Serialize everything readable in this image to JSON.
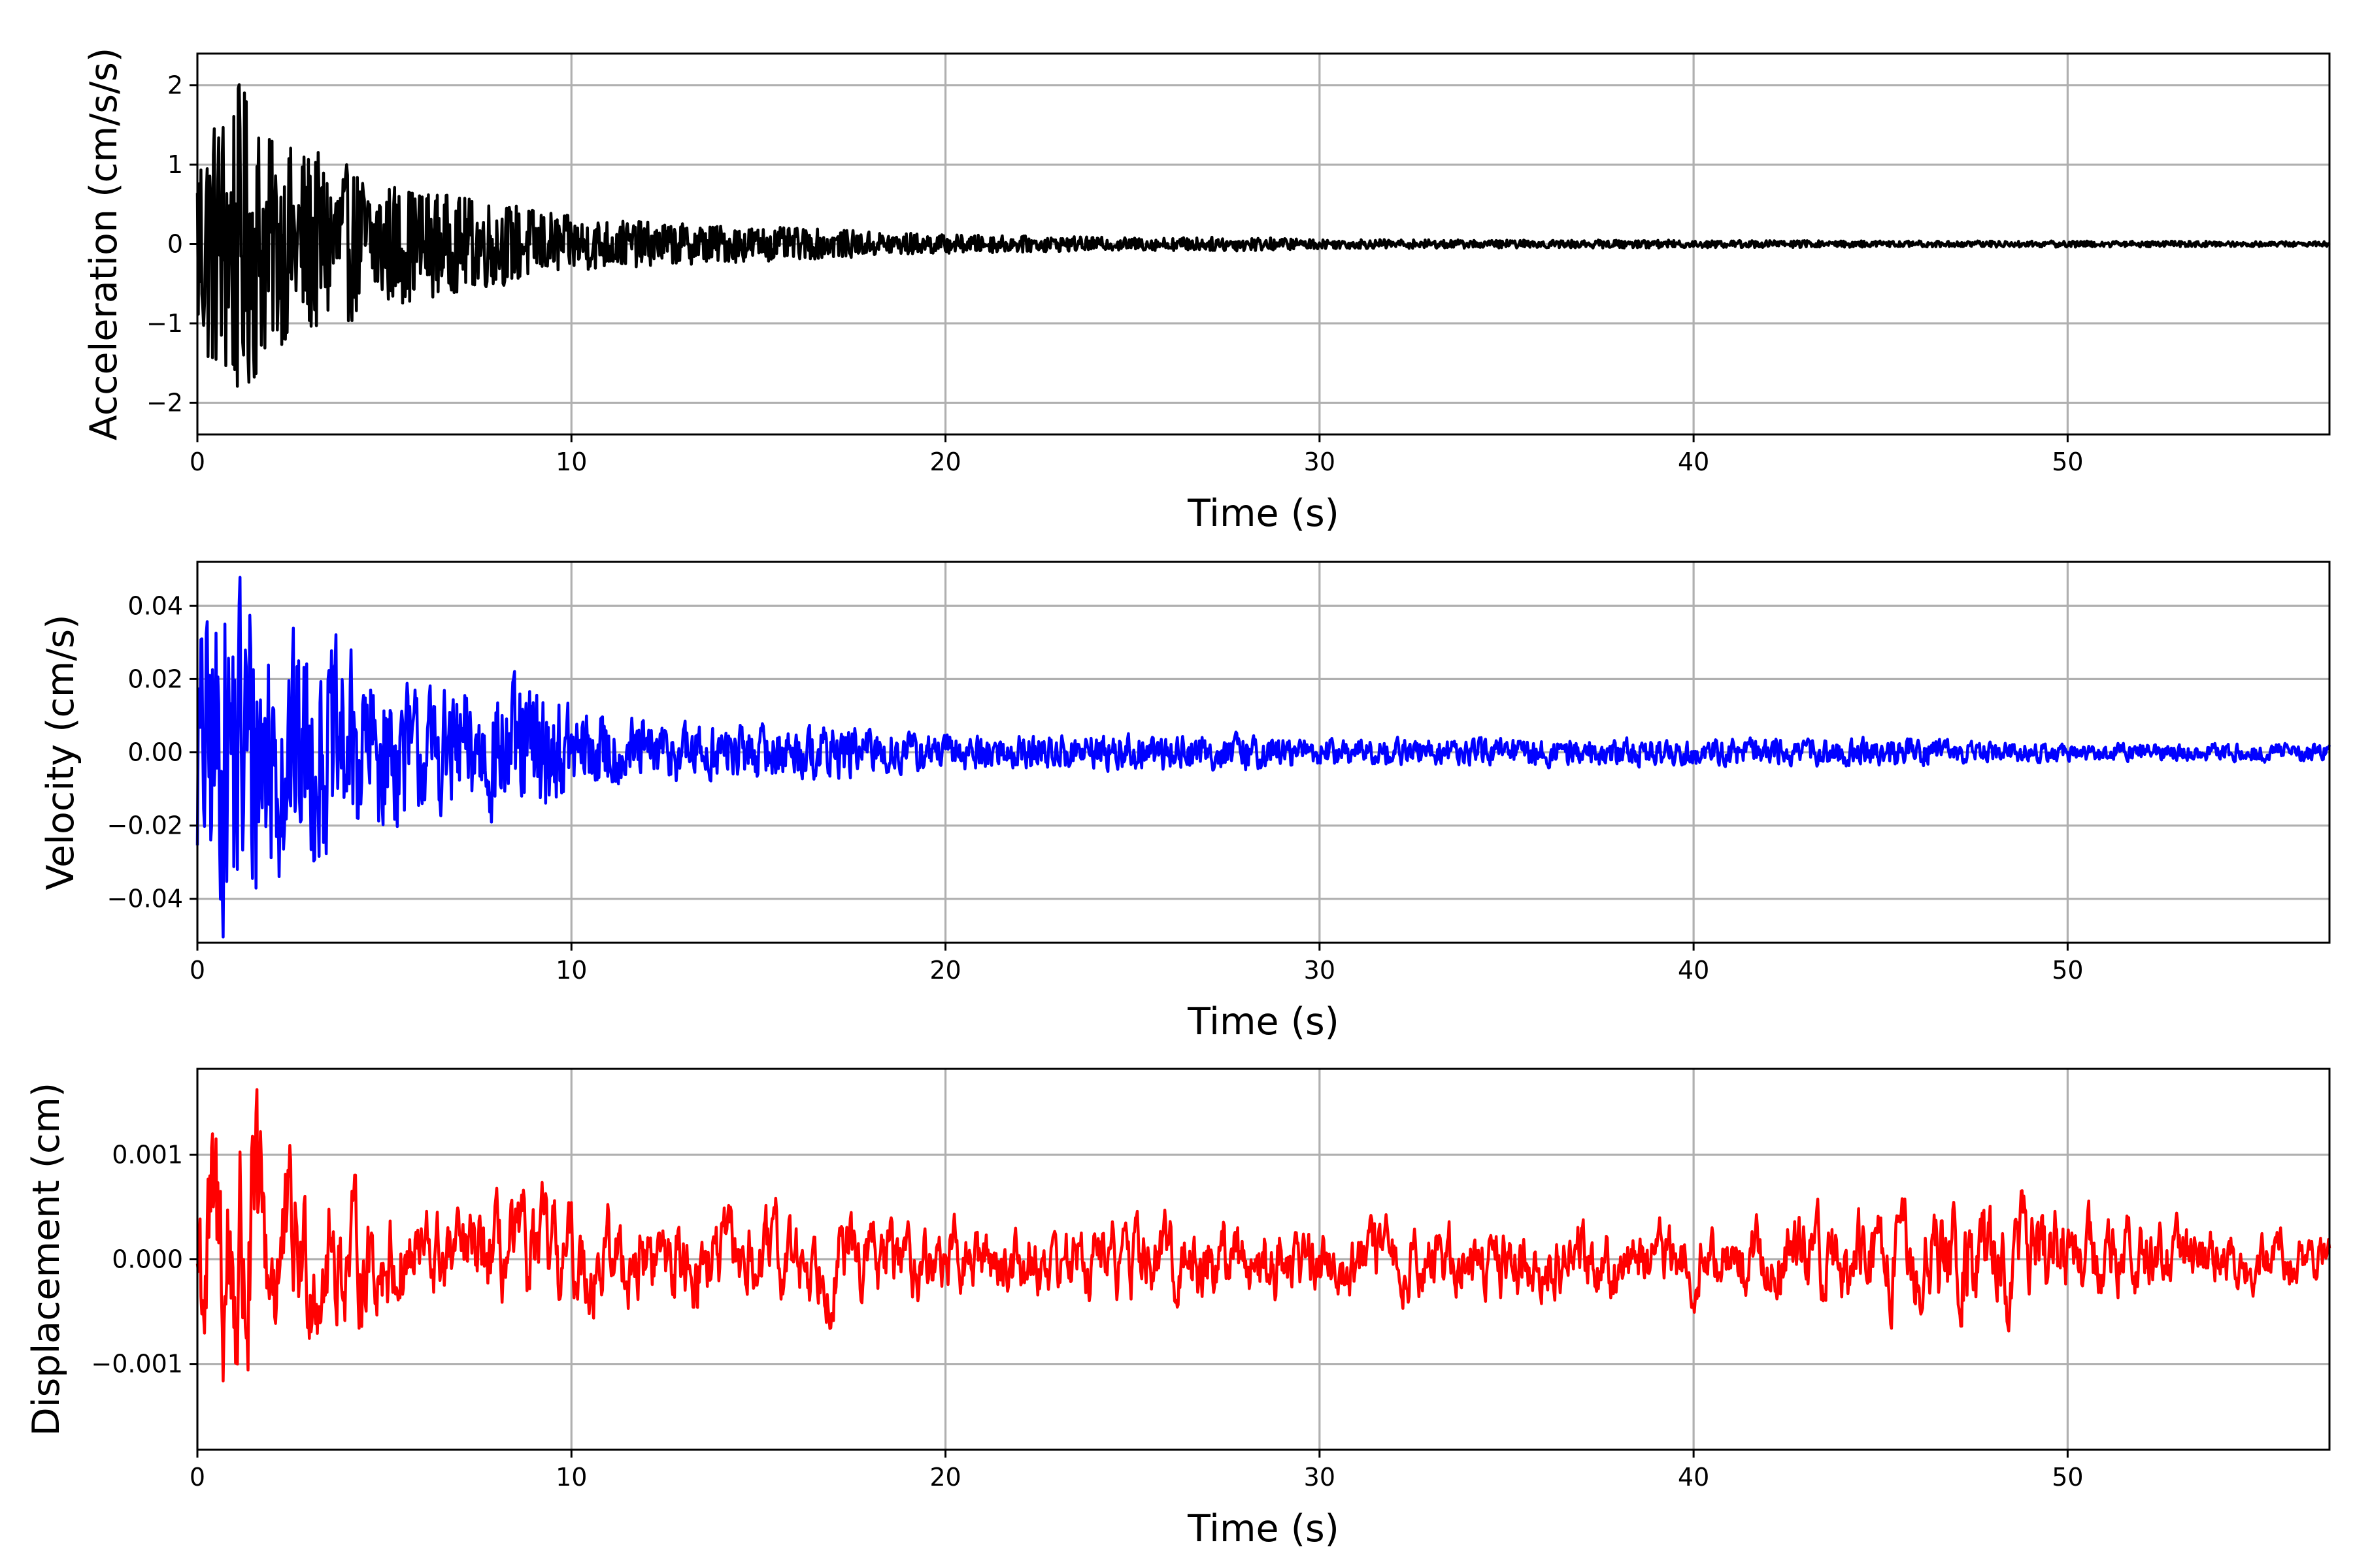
{
  "chart_data": [
    {
      "type": "line",
      "xlabel": "Time (s)",
      "ylabel": "Acceleration (cm/s/s)",
      "xlim": [
        0,
        57
      ],
      "ylim": [
        -2.4,
        2.4
      ],
      "xticks": [
        0,
        10,
        20,
        30,
        40,
        50
      ],
      "yticks": [
        -2,
        -1,
        0,
        1,
        2
      ],
      "ytick_labels": [
        "−2",
        "−1",
        "0",
        "1",
        "2"
      ],
      "grid": true,
      "series": [
        {
          "color": "#000000",
          "envelope": {
            "t": [
              0,
              0.5,
              1.0,
              1.5,
              2,
              3,
              4,
              5,
              6,
              7,
              8,
              9,
              10,
              12,
              15,
              17,
              20,
              25,
              28,
              30,
              35,
              40,
              45,
              50,
              57
            ],
            "amp": [
              1.5,
              1.7,
              2.1,
              1.8,
              1.3,
              1.2,
              1.0,
              0.8,
              0.7,
              0.6,
              0.55,
              0.45,
              0.35,
              0.28,
              0.22,
              0.18,
              0.12,
              0.08,
              0.09,
              0.06,
              0.05,
              0.05,
              0.04,
              0.04,
              0.03
            ]
          }
        }
      ]
    },
    {
      "type": "line",
      "xlabel": "Time (s)",
      "ylabel": "Velocity (cm/s)",
      "xlim": [
        0,
        57
      ],
      "ylim": [
        -0.052,
        0.052
      ],
      "xticks": [
        0,
        10,
        20,
        30,
        40,
        50
      ],
      "yticks": [
        -0.04,
        -0.02,
        0.0,
        0.02,
        0.04
      ],
      "ytick_labels": [
        "−0.04",
        "−0.02",
        "0.00",
        "0.02",
        "0.04"
      ],
      "grid": true,
      "series": [
        {
          "color": "#0000ff",
          "envelope": {
            "t": [
              0,
              0.5,
              1.0,
              1.5,
              2,
              3,
              4,
              5,
              6,
              7,
              8,
              9,
              10,
              12,
              15,
              17,
              20,
              25,
              28,
              30,
              35,
              40,
              45,
              50,
              57
            ],
            "amp": [
              0.03,
              0.035,
              0.044,
              0.04,
              0.03,
              0.025,
              0.022,
              0.018,
              0.014,
              0.014,
              0.015,
              0.016,
              0.01,
              0.007,
              0.006,
              0.006,
              0.004,
              0.004,
              0.004,
              0.003,
              0.003,
              0.003,
              0.003,
              0.002,
              0.002
            ]
          }
        }
      ]
    },
    {
      "type": "line",
      "xlabel": "Time (s)",
      "ylabel": "Displacement (cm)",
      "xlim": [
        0,
        57
      ],
      "ylim": [
        -0.00182,
        0.00182
      ],
      "xticks": [
        0,
        10,
        20,
        30,
        40,
        50
      ],
      "yticks": [
        -0.001,
        0.0,
        0.001
      ],
      "ytick_labels": [
        "−0.001",
        "0.000",
        "0.001"
      ],
      "grid": true,
      "series": [
        {
          "color": "#ff0000",
          "envelope": {
            "t": [
              0,
              0.5,
              1.0,
              1.5,
              2,
              3,
              4,
              5,
              6,
              7,
              8,
              9,
              10,
              12,
              15,
              17,
              20,
              25,
              28,
              30,
              35,
              40,
              45,
              48,
              50,
              57
            ],
            "amp": [
              0.0011,
              0.0012,
              0.0016,
              0.0013,
              0.0009,
              0.0007,
              0.0006,
              0.0005,
              0.00045,
              0.0004,
              0.00045,
              0.0005,
              0.0005,
              0.0004,
              0.0004,
              0.0004,
              0.0003,
              0.00035,
              0.0004,
              0.0003,
              0.00035,
              0.0003,
              0.0004,
              0.00055,
              0.0004,
              0.0002
            ]
          }
        }
      ]
    }
  ]
}
